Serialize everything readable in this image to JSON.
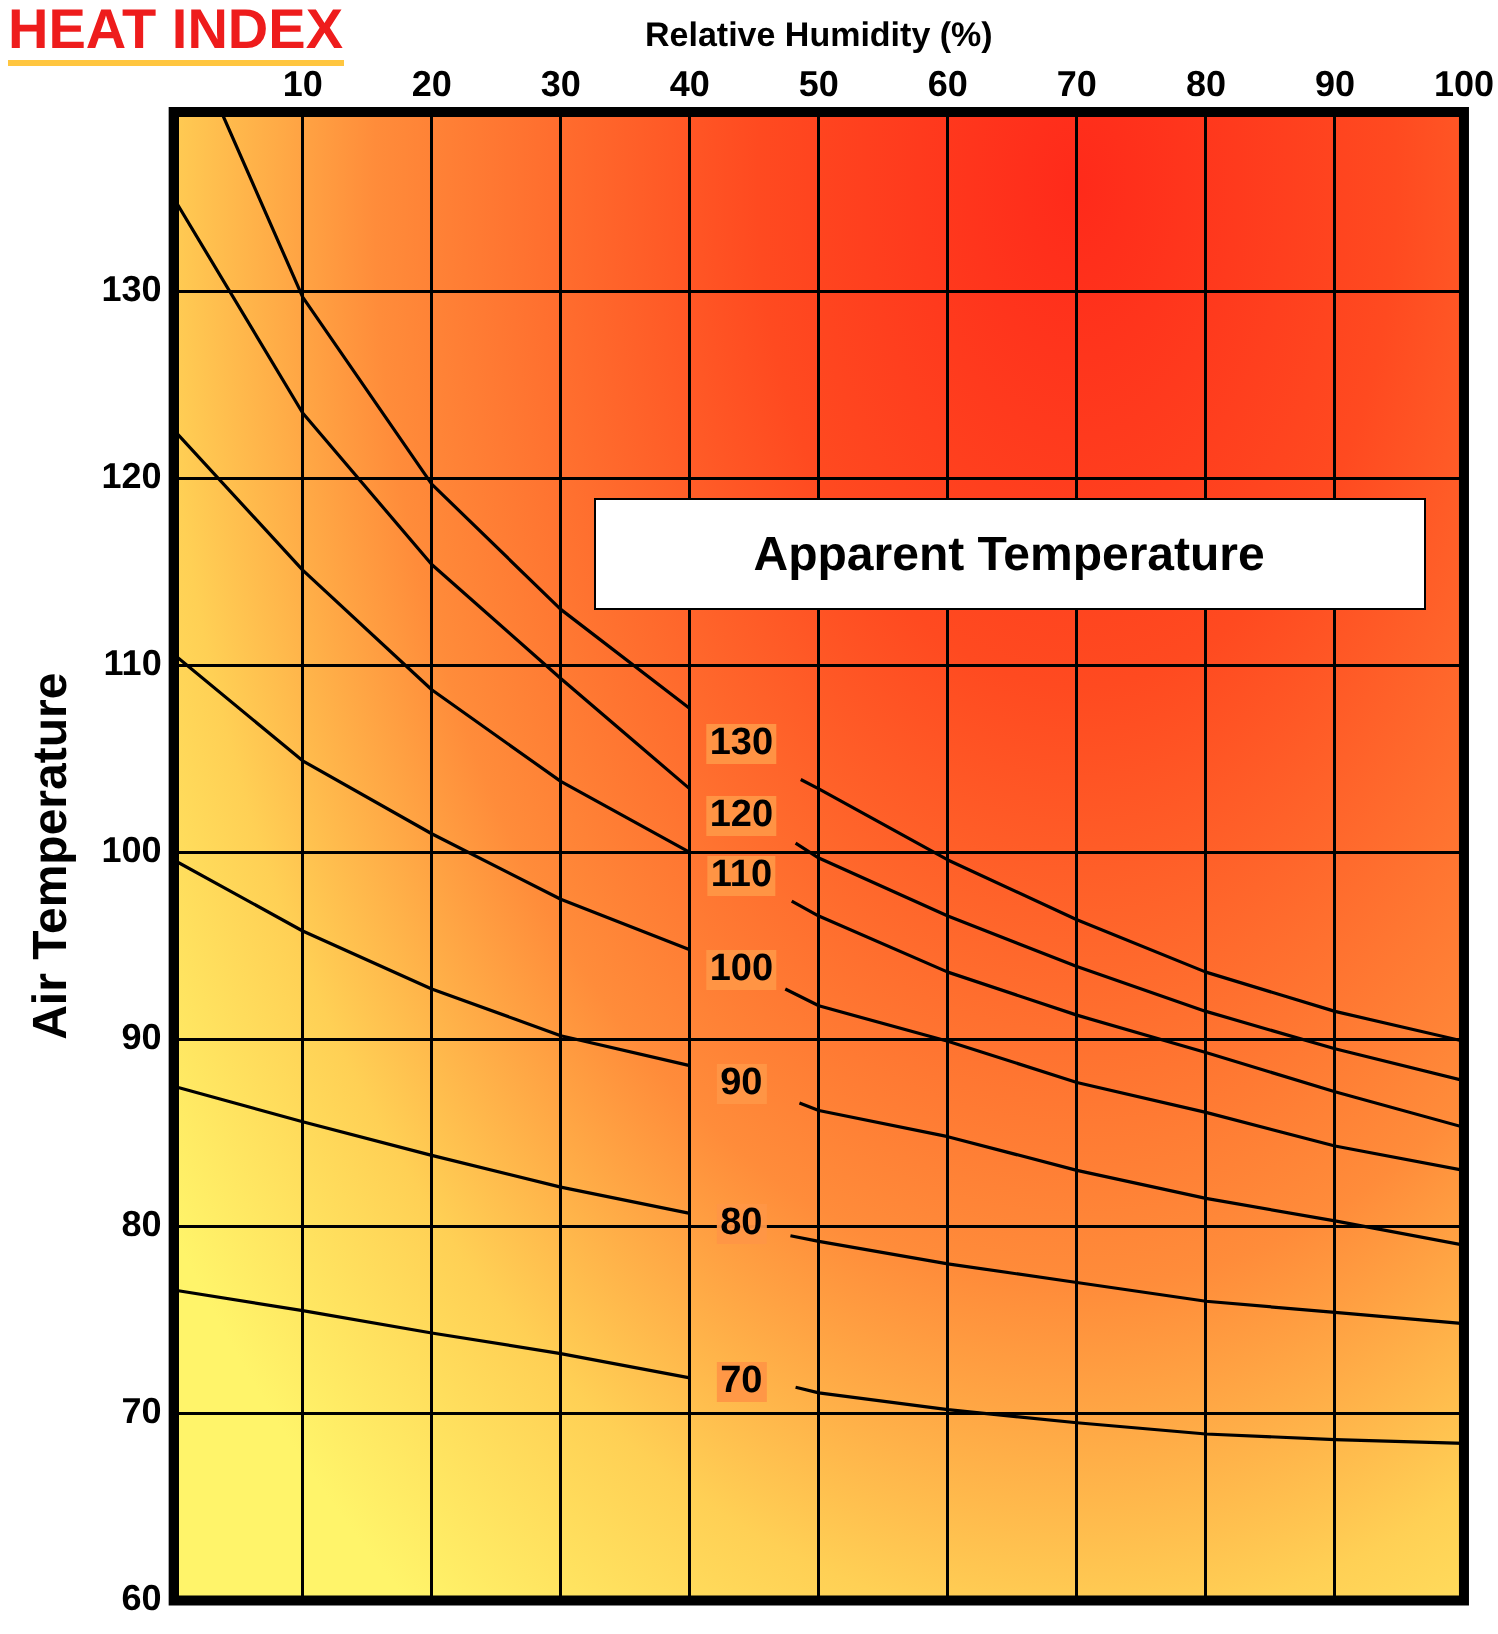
{
  "chart_data": {
    "type": "line",
    "title": "HEAT INDEX",
    "xlabel": "Relative Humidity (%)",
    "ylabel": "Air Temperature",
    "annotations": [
      "Apparent Temperature"
    ],
    "xlim": [
      0,
      100
    ],
    "xticks": [
      10,
      20,
      30,
      40,
      50,
      60,
      70,
      80,
      90,
      100
    ],
    "ylim": [
      60,
      139.6
    ],
    "yticks": [
      60,
      70,
      80,
      90,
      100,
      110,
      120,
      130
    ],
    "grid": true,
    "legend": false,
    "series": [
      {
        "name": "130",
        "color": "#000000",
        "x": [
          3.7,
          10,
          20,
          30,
          40,
          44,
          48.6,
          50,
          60,
          70,
          80,
          90,
          100
        ],
        "values": [
          139.6,
          129.7,
          119.7,
          113.0,
          107.7,
          null,
          103.9,
          103.4,
          99.6,
          96.4,
          93.6,
          91.5,
          89.9
        ]
      },
      {
        "name": "120",
        "color": "#000000",
        "x": [
          0,
          10,
          20,
          30,
          40,
          44,
          48.2,
          50,
          60,
          70,
          80,
          90,
          100
        ],
        "values": [
          135.0,
          123.5,
          115.4,
          109.3,
          103.4,
          null,
          100.5,
          99.7,
          96.6,
          93.9,
          91.5,
          89.5,
          87.8
        ]
      },
      {
        "name": "110",
        "color": "#000000",
        "x": [
          0,
          10,
          20,
          30,
          40,
          44,
          47.9,
          50,
          60,
          70,
          80,
          90,
          100
        ],
        "values": [
          122.6,
          115.1,
          108.7,
          103.8,
          100.0,
          null,
          97.4,
          96.6,
          93.6,
          91.3,
          89.3,
          87.2,
          85.3
        ]
      },
      {
        "name": "100",
        "color": "#000000",
        "x": [
          0,
          10,
          20,
          30,
          40,
          44,
          47.4,
          50,
          60,
          70,
          80,
          90,
          100
        ],
        "values": [
          110.6,
          104.9,
          101.0,
          97.5,
          94.8,
          null,
          92.7,
          91.8,
          89.9,
          87.7,
          86.1,
          84.3,
          83.0
        ]
      },
      {
        "name": "90",
        "color": "#000000",
        "x": [
          0,
          10,
          20,
          30,
          40,
          44,
          48.5,
          50,
          60,
          70,
          80,
          90,
          100
        ],
        "values": [
          99.6,
          95.8,
          92.7,
          90.2,
          88.6,
          null,
          86.6,
          86.2,
          84.8,
          83.0,
          81.5,
          80.3,
          79.0
        ]
      },
      {
        "name": "80",
        "color": "#000000",
        "x": [
          0,
          10,
          20,
          30,
          40,
          44,
          47.8,
          50,
          60,
          70,
          80,
          90,
          100
        ],
        "values": [
          87.5,
          85.6,
          83.8,
          82.1,
          80.7,
          null,
          79.5,
          79.2,
          78.0,
          77.0,
          76.0,
          75.4,
          74.8
        ]
      },
      {
        "name": "70",
        "color": "#000000",
        "x": [
          0,
          10,
          20,
          30,
          40,
          44,
          48.2,
          50,
          60,
          70,
          80,
          90,
          100
        ],
        "values": [
          76.6,
          75.5,
          74.3,
          73.2,
          71.9,
          null,
          71.4,
          71.1,
          70.2,
          69.5,
          68.9,
          68.6,
          68.4
        ]
      }
    ]
  }
}
